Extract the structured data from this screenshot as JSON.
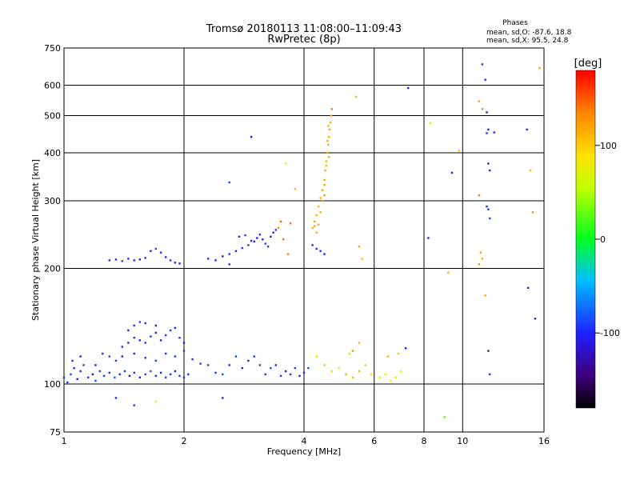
{
  "chart_data": {
    "type": "scatter",
    "title": "Tromsø 20180113 11:08:00–11:09:43",
    "subtitle": "RwPretec (8p)",
    "stats_title": "Phases",
    "stats_lines": [
      "mean, sd,O: -87.6, 18.8",
      "mean, sd,X:  95.5, 24.8"
    ],
    "xlabel": "Frequency [MHz]",
    "ylabel": "Stationary phase Virtual Height [km]",
    "x_scale": "log",
    "y_scale": "log",
    "xlim": [
      1,
      16
    ],
    "ylim": [
      75,
      750
    ],
    "x_ticks": [
      1,
      2,
      4,
      6,
      8,
      10,
      16
    ],
    "y_ticks": [
      75,
      100,
      200,
      300,
      400,
      500,
      600,
      750
    ],
    "colorbar": {
      "label": "[deg]",
      "range": [
        -180,
        180
      ],
      "ticks": [
        100,
        0,
        -100
      ]
    },
    "grid": true,
    "series": [
      {
        "points": [
          [
            1.0,
            104,
            -90
          ],
          [
            1.02,
            101,
            -95
          ],
          [
            1.04,
            106,
            -85
          ],
          [
            1.06,
            110,
            -100
          ],
          [
            1.08,
            103,
            -120
          ],
          [
            1.1,
            108,
            -95
          ],
          [
            1.12,
            112,
            -90
          ],
          [
            1.15,
            104,
            -100
          ],
          [
            1.18,
            106,
            -110
          ],
          [
            1.2,
            102,
            -85
          ],
          [
            1.23,
            108,
            -90
          ],
          [
            1.26,
            105,
            -95
          ],
          [
            1.3,
            107,
            -100
          ],
          [
            1.34,
            104,
            -80
          ],
          [
            1.38,
            106,
            -95
          ],
          [
            1.42,
            108,
            -90
          ],
          [
            1.46,
            105,
            -100
          ],
          [
            1.5,
            107,
            -95
          ],
          [
            1.55,
            104,
            -110
          ],
          [
            1.6,
            106,
            -90
          ],
          [
            1.65,
            108,
            -85
          ],
          [
            1.7,
            105,
            -95
          ],
          [
            1.75,
            107,
            -100
          ],
          [
            1.8,
            104,
            -90
          ],
          [
            1.85,
            106,
            -95
          ],
          [
            1.9,
            108,
            -105
          ],
          [
            1.95,
            105,
            -90
          ],
          [
            2.0,
            104,
            -95
          ],
          [
            2.05,
            106,
            -100
          ],
          [
            1.05,
            115,
            -95
          ],
          [
            1.1,
            118,
            -110
          ],
          [
            1.2,
            112,
            -100
          ],
          [
            1.25,
            120,
            -95
          ],
          [
            1.3,
            118,
            -90
          ],
          [
            1.4,
            125,
            -100
          ],
          [
            1.45,
            128,
            -110
          ],
          [
            1.5,
            132,
            -95
          ],
          [
            1.55,
            130,
            -100
          ],
          [
            1.6,
            128,
            -90
          ],
          [
            1.65,
            133,
            -95
          ],
          [
            1.7,
            136,
            -105
          ],
          [
            1.75,
            130,
            -100
          ],
          [
            1.8,
            134,
            -95
          ],
          [
            1.85,
            138,
            -90
          ],
          [
            1.9,
            140,
            -100
          ],
          [
            1.95,
            132,
            -95
          ],
          [
            2.0,
            128,
            -110
          ],
          [
            1.45,
            138,
            -100
          ],
          [
            1.5,
            142,
            -95
          ],
          [
            1.55,
            145,
            -90
          ],
          [
            1.6,
            144,
            -100
          ],
          [
            1.7,
            142,
            -120
          ],
          [
            1.8,
            120,
            -95
          ],
          [
            1.9,
            118,
            -100
          ],
          [
            2.0,
            122,
            -90
          ],
          [
            1.35,
            115,
            -95
          ],
          [
            1.4,
            118,
            -110
          ],
          [
            1.5,
            120,
            -100
          ],
          [
            1.6,
            117,
            -95
          ],
          [
            1.7,
            115,
            -90
          ],
          [
            1.3,
            210,
            -95
          ],
          [
            1.35,
            211,
            -100
          ],
          [
            1.4,
            209,
            -90
          ],
          [
            1.45,
            212,
            -95
          ],
          [
            1.5,
            210,
            -100
          ],
          [
            1.55,
            211,
            -110
          ],
          [
            1.6,
            213,
            -95
          ],
          [
            1.65,
            222,
            -100
          ],
          [
            1.7,
            225,
            -90
          ],
          [
            1.75,
            220,
            -95
          ],
          [
            1.8,
            214,
            -100
          ],
          [
            1.85,
            210,
            -95
          ],
          [
            1.9,
            207,
            -110
          ],
          [
            1.95,
            206,
            -100
          ],
          [
            2.1,
            116,
            -105
          ],
          [
            2.2,
            113,
            -95
          ],
          [
            2.3,
            112,
            -90
          ],
          [
            2.4,
            107,
            -95
          ],
          [
            2.5,
            106,
            -85
          ],
          [
            2.6,
            112,
            -100
          ],
          [
            2.7,
            118,
            -95
          ],
          [
            2.8,
            110,
            -110
          ],
          [
            2.9,
            115,
            -100
          ],
          [
            3.0,
            118,
            -95
          ],
          [
            3.1,
            112,
            -90
          ],
          [
            3.2,
            106,
            -95
          ],
          [
            3.3,
            110,
            -85
          ],
          [
            3.4,
            112,
            -100
          ],
          [
            3.5,
            105,
            -95
          ],
          [
            3.6,
            108,
            -110
          ],
          [
            3.7,
            106,
            -90
          ],
          [
            3.8,
            110,
            -95
          ],
          [
            3.9,
            105,
            -100
          ],
          [
            4.0,
            107,
            -95
          ],
          [
            4.1,
            110,
            -90
          ],
          [
            2.3,
            212,
            -95
          ],
          [
            2.4,
            210,
            -100
          ],
          [
            2.5,
            215,
            -110
          ],
          [
            2.6,
            218,
            -95
          ],
          [
            2.7,
            222,
            -100
          ],
          [
            2.8,
            226,
            -90
          ],
          [
            2.9,
            230,
            -95
          ],
          [
            3.0,
            235,
            -100
          ],
          [
            3.05,
            240,
            -110
          ],
          [
            3.1,
            245,
            -95
          ],
          [
            3.15,
            238,
            -100
          ],
          [
            3.2,
            232,
            -90
          ],
          [
            3.25,
            228,
            -95
          ],
          [
            3.3,
            242,
            -100
          ],
          [
            3.35,
            248,
            -110
          ],
          [
            3.4,
            252,
            -95
          ],
          [
            2.75,
            242,
            -100
          ],
          [
            2.85,
            244,
            -90
          ],
          [
            2.95,
            236,
            -95
          ],
          [
            2.6,
            205,
            -100
          ],
          [
            4.2,
            255,
            115
          ],
          [
            4.25,
            265,
            120
          ],
          [
            4.3,
            275,
            110
          ],
          [
            4.35,
            290,
            115
          ],
          [
            4.4,
            305,
            118
          ],
          [
            4.45,
            320,
            112
          ],
          [
            4.5,
            340,
            120
          ],
          [
            4.52,
            360,
            115
          ],
          [
            4.55,
            380,
            110
          ],
          [
            4.58,
            400,
            118
          ],
          [
            4.6,
            420,
            115
          ],
          [
            4.62,
            440,
            112
          ],
          [
            4.64,
            460,
            120
          ],
          [
            4.66,
            480,
            115
          ],
          [
            4.68,
            500,
            118
          ],
          [
            4.7,
            520,
            140
          ],
          [
            4.6,
            470,
            110
          ],
          [
            4.58,
            430,
            112
          ],
          [
            4.55,
            370,
            118
          ],
          [
            4.5,
            330,
            120
          ],
          [
            4.45,
            300,
            125
          ],
          [
            4.4,
            280,
            118
          ],
          [
            4.35,
            260,
            115
          ],
          [
            4.3,
            248,
            120
          ],
          [
            4.25,
            258,
            118
          ],
          [
            4.5,
            310,
            130
          ],
          [
            4.62,
            390,
            115
          ],
          [
            4.2,
            230,
            -110
          ],
          [
            4.3,
            225,
            -100
          ],
          [
            4.4,
            222,
            -95
          ],
          [
            4.5,
            218,
            -105
          ],
          [
            4.3,
            118,
            60
          ],
          [
            4.5,
            112,
            110
          ],
          [
            4.7,
            108,
            95
          ],
          [
            4.9,
            110,
            85
          ],
          [
            5.1,
            106,
            120
          ],
          [
            5.3,
            104,
            110
          ],
          [
            5.5,
            108,
            115
          ],
          [
            5.7,
            112,
            100
          ],
          [
            5.9,
            106,
            95
          ],
          [
            5.3,
            122,
            130
          ],
          [
            5.5,
            128,
            115
          ],
          [
            5.2,
            120,
            80
          ],
          [
            6.2,
            104,
            70
          ],
          [
            6.4,
            106,
            75
          ],
          [
            6.6,
            102,
            70
          ],
          [
            6.8,
            104,
            72
          ],
          [
            7.0,
            108,
            75
          ],
          [
            6.5,
            118,
            110
          ],
          [
            6.9,
            120,
            105
          ],
          [
            7.2,
            124,
            -110
          ],
          [
            5.6,
            212,
            110
          ],
          [
            5.5,
            228,
            120
          ],
          [
            5.4,
            560,
            110
          ],
          [
            7.3,
            590,
            -100
          ],
          [
            8.3,
            478,
            60
          ],
          [
            9.8,
            405,
            110
          ],
          [
            9.4,
            355,
            -110
          ],
          [
            8.2,
            240,
            -110
          ],
          [
            9.2,
            195,
            110
          ],
          [
            9.0,
            82,
            20
          ],
          [
            11.0,
            545,
            120
          ],
          [
            11.2,
            520,
            130
          ],
          [
            11.0,
            310,
            140
          ],
          [
            11.1,
            220,
            120
          ],
          [
            11.2,
            212,
            115
          ],
          [
            11.0,
            205,
            130
          ],
          [
            11.4,
            620,
            -100
          ],
          [
            11.5,
            510,
            -110
          ],
          [
            11.6,
            460,
            -100
          ],
          [
            11.5,
            450,
            -95
          ],
          [
            11.6,
            375,
            -110
          ],
          [
            11.7,
            360,
            -105
          ],
          [
            11.5,
            290,
            -100
          ],
          [
            11.6,
            285,
            -95
          ],
          [
            11.7,
            270,
            -90
          ],
          [
            11.4,
            170,
            120
          ],
          [
            11.6,
            122,
            -110
          ],
          [
            11.7,
            106,
            -100
          ],
          [
            12.0,
            452,
            -100
          ],
          [
            14.5,
            460,
            -100
          ],
          [
            14.8,
            360,
            110
          ],
          [
            15.0,
            280,
            130
          ],
          [
            14.6,
            178,
            -110
          ],
          [
            15.2,
            148,
            -100
          ],
          [
            11.2,
            680,
            -90
          ],
          [
            15.6,
            665,
            120
          ],
          [
            2.6,
            335,
            -90
          ],
          [
            2.95,
            440,
            -110
          ],
          [
            3.6,
            375,
            55
          ],
          [
            3.8,
            322,
            110
          ],
          [
            3.7,
            262,
            140
          ],
          [
            3.5,
            265,
            150
          ],
          [
            3.45,
            255,
            130
          ],
          [
            3.55,
            238,
            145
          ],
          [
            3.65,
            218,
            135
          ],
          [
            2.5,
            92,
            -110
          ],
          [
            1.7,
            90,
            50
          ],
          [
            1.35,
            92,
            -100
          ],
          [
            1.5,
            88,
            -95
          ]
        ]
      }
    ]
  }
}
